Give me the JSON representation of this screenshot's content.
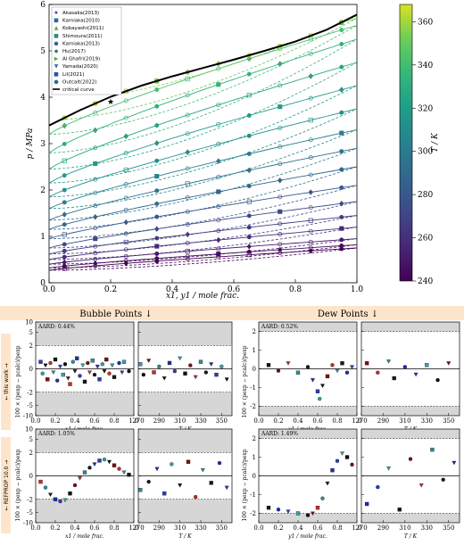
{
  "chart_data": [
    {
      "type": "scatter",
      "xlabel": "x1, y1 / mole frac.",
      "ylabel": "p / MPa",
      "xlim": [
        0.0,
        1.0
      ],
      "ylim": [
        0,
        6
      ],
      "xticks": [
        "0.0",
        "0.2",
        "0.4",
        "0.6",
        "0.8",
        "1.0"
      ],
      "yticks": [
        "0",
        "1",
        "2",
        "3",
        "4",
        "5",
        "6"
      ],
      "colorbar": {
        "label": "T / K",
        "min": 240,
        "max": 368,
        "ticks": [
          "240",
          "260",
          "280",
          "300",
          "320",
          "340",
          "360"
        ]
      },
      "legend": [
        "Akasaka(2013)",
        "Kamiaka(2010)",
        "Kobayashi(2011)",
        "Shimoura(2011)",
        "Kamiaka(2013)",
        "Hu(2017)",
        "Al Ghafri(2019)",
        "Yamada(2020)",
        "Lil(2021)",
        "Outcalt(2022)",
        "critical curve"
      ],
      "critical_curve": {
        "x": [
          0.0,
          0.1,
          0.2,
          0.3,
          0.4,
          0.5,
          0.6,
          0.7,
          0.8,
          0.9,
          1.0
        ],
        "y": [
          3.39,
          3.72,
          4.01,
          4.25,
          4.45,
          4.63,
          4.81,
          5.0,
          5.2,
          5.45,
          5.78
        ]
      },
      "isotherms": [
        {
          "T": 240,
          "p0": 0.27,
          "p1": 0.75
        },
        {
          "T": 245,
          "p0": 0.32,
          "p1": 0.82
        },
        {
          "T": 250,
          "p0": 0.4,
          "p1": 0.95
        },
        {
          "T": 258,
          "p0": 0.5,
          "p1": 1.2
        },
        {
          "T": 265,
          "p0": 0.62,
          "p1": 1.45
        },
        {
          "T": 272,
          "p0": 0.75,
          "p1": 1.75
        },
        {
          "T": 280,
          "p0": 0.95,
          "p1": 2.1
        },
        {
          "T": 288,
          "p0": 1.15,
          "p1": 2.5
        },
        {
          "T": 295,
          "p0": 1.35,
          "p1": 2.9
        },
        {
          "T": 303,
          "p0": 1.6,
          "p1": 3.3
        },
        {
          "T": 310,
          "p0": 1.85,
          "p1": 3.75
        },
        {
          "T": 318,
          "p0": 2.15,
          "p1": 4.25
        },
        {
          "T": 325,
          "p0": 2.45,
          "p1": 4.75
        },
        {
          "T": 333,
          "p0": 2.8,
          "p1": 5.25
        },
        {
          "T": 340,
          "p0": 3.2,
          "p1": 5.55
        },
        {
          "T": 348,
          "p0": 3.5,
          "p1": 5.7
        },
        {
          "T": 355,
          "p0": 3.9,
          "p1": 5.75
        },
        {
          "T": 362,
          "p0": 4.35,
          "p1": 5.78
        }
      ]
    },
    {
      "panel": "bubble-this-work-x",
      "type": "scatter",
      "xlabel": "x1 / mole frac.",
      "ylabel": "100 × (pexp − pcalc)/pexp",
      "xlim": [
        0.0,
        1.0
      ],
      "ylim": [
        -10,
        10
      ],
      "aard": "AARD: 0.44%",
      "points": [
        [
          0.05,
          0.6
        ],
        [
          0.07,
          -0.4
        ],
        [
          0.1,
          0.3
        ],
        [
          0.12,
          -0.9
        ],
        [
          0.15,
          0.5
        ],
        [
          0.18,
          -0.3
        ],
        [
          0.2,
          0.8
        ],
        [
          0.22,
          -1.0
        ],
        [
          0.25,
          0.2
        ],
        [
          0.28,
          -0.5
        ],
        [
          0.3,
          0.4
        ],
        [
          0.33,
          -0.8
        ],
        [
          0.35,
          -1.3
        ],
        [
          0.38,
          0.6
        ],
        [
          0.4,
          -0.2
        ],
        [
          0.42,
          0.9
        ],
        [
          0.45,
          -0.6
        ],
        [
          0.48,
          0.3
        ],
        [
          0.5,
          -1.1
        ],
        [
          0.53,
          0.5
        ],
        [
          0.55,
          -0.3
        ],
        [
          0.58,
          0.7
        ],
        [
          0.6,
          -0.5
        ],
        [
          0.63,
          0.2
        ],
        [
          0.65,
          -0.9
        ],
        [
          0.68,
          0.4
        ],
        [
          0.7,
          -0.2
        ],
        [
          0.72,
          0.8
        ],
        [
          0.75,
          -0.4
        ],
        [
          0.78,
          0.3
        ],
        [
          0.8,
          -0.7
        ],
        [
          0.85,
          0.5
        ],
        [
          0.88,
          -0.3
        ],
        [
          0.9,
          0.6
        ],
        [
          0.95,
          -0.2
        ]
      ]
    },
    {
      "panel": "bubble-this-work-T",
      "type": "scatter",
      "xlabel": "T / K",
      "xlim": [
        270,
        360
      ],
      "ylim": [
        -10,
        10
      ],
      "xticks": [
        "270",
        "290",
        "310",
        "330",
        "350"
      ],
      "points": [
        [
          272,
          0.4
        ],
        [
          275,
          -0.5
        ],
        [
          280,
          0.7
        ],
        [
          285,
          -0.3
        ],
        [
          290,
          0.2
        ],
        [
          295,
          -0.8
        ],
        [
          300,
          0.5
        ],
        [
          305,
          -0.2
        ],
        [
          310,
          0.9
        ],
        [
          315,
          -0.4
        ],
        [
          320,
          0.3
        ],
        [
          325,
          -0.7
        ],
        [
          330,
          0.6
        ],
        [
          335,
          -0.3
        ],
        [
          340,
          0.4
        ],
        [
          345,
          -0.5
        ],
        [
          350,
          0.2
        ],
        [
          355,
          -0.9
        ]
      ]
    },
    {
      "panel": "dew-this-work-y",
      "type": "scatter",
      "xlabel": "y1 / mole frac.",
      "xlim": [
        0.0,
        1.0
      ],
      "ylim": [
        -2.5,
        2.5
      ],
      "aard": "AARD: 0.52%",
      "points": [
        [
          0.1,
          0.2
        ],
        [
          0.2,
          -0.1
        ],
        [
          0.3,
          0.3
        ],
        [
          0.4,
          -0.2
        ],
        [
          0.5,
          0.1
        ],
        [
          0.55,
          -0.6
        ],
        [
          0.6,
          -1.2
        ],
        [
          0.62,
          -1.6
        ],
        [
          0.65,
          -0.9
        ],
        [
          0.7,
          -0.4
        ],
        [
          0.75,
          0.2
        ],
        [
          0.8,
          -0.1
        ],
        [
          0.85,
          0.3
        ],
        [
          0.9,
          -0.2
        ],
        [
          0.95,
          0.1
        ]
      ]
    },
    {
      "panel": "dew-this-work-T",
      "type": "scatter",
      "xlabel": "T / K",
      "xlim": [
        270,
        360
      ],
      "ylim": [
        -2.5,
        2.5
      ],
      "xticks": [
        "270",
        "290",
        "310",
        "330",
        "350"
      ],
      "points": [
        [
          275,
          0.3
        ],
        [
          285,
          -0.2
        ],
        [
          295,
          0.4
        ],
        [
          300,
          -0.5
        ],
        [
          310,
          0.1
        ],
        [
          320,
          -0.3
        ],
        [
          330,
          0.2
        ],
        [
          340,
          -0.6
        ],
        [
          350,
          0.3
        ]
      ]
    },
    {
      "panel": "bubble-refprop-x",
      "type": "scatter",
      "xlabel": "x1 / mole frac.",
      "xlim": [
        0.0,
        1.0
      ],
      "ylim": [
        -10,
        10
      ],
      "aard": "AARD: 1.05%",
      "points": [
        [
          0.05,
          -0.5
        ],
        [
          0.1,
          -1.0
        ],
        [
          0.15,
          -1.6
        ],
        [
          0.2,
          -2.0
        ],
        [
          0.25,
          -2.3
        ],
        [
          0.3,
          -2.1
        ],
        [
          0.35,
          -1.5
        ],
        [
          0.4,
          -0.8
        ],
        [
          0.45,
          -0.2
        ],
        [
          0.5,
          0.3
        ],
        [
          0.55,
          0.7
        ],
        [
          0.6,
          1.0
        ],
        [
          0.65,
          1.3
        ],
        [
          0.7,
          1.4
        ],
        [
          0.75,
          1.2
        ],
        [
          0.8,
          0.9
        ],
        [
          0.85,
          0.6
        ],
        [
          0.9,
          0.3
        ],
        [
          0.95,
          0.1
        ]
      ]
    },
    {
      "panel": "bubble-refprop-T",
      "type": "scatter",
      "xlabel": "T / K",
      "xlim": [
        270,
        360
      ],
      "ylim": [
        -10,
        10
      ],
      "xticks": [
        "270",
        "290",
        "310",
        "330",
        "350"
      ],
      "points": [
        [
          272,
          -1.2
        ],
        [
          280,
          -0.5
        ],
        [
          288,
          0.6
        ],
        [
          295,
          -1.5
        ],
        [
          302,
          1.0
        ],
        [
          310,
          -0.8
        ],
        [
          318,
          1.2
        ],
        [
          325,
          -1.8
        ],
        [
          332,
          0.5
        ],
        [
          340,
          -0.6
        ],
        [
          348,
          1.1
        ],
        [
          355,
          -1.0
        ]
      ]
    },
    {
      "panel": "dew-refprop-y",
      "type": "scatter",
      "xlabel": "y1 / mole frac.",
      "xlim": [
        0.0,
        1.0
      ],
      "ylim": [
        -2.5,
        2.5
      ],
      "aard": "AARD: 1.49%",
      "points": [
        [
          0.1,
          -1.7
        ],
        [
          0.2,
          -1.8
        ],
        [
          0.3,
          -1.9
        ],
        [
          0.4,
          -2.0
        ],
        [
          0.5,
          -2.1
        ],
        [
          0.55,
          -2.0
        ],
        [
          0.6,
          -1.7
        ],
        [
          0.65,
          -1.2
        ],
        [
          0.7,
          -0.4
        ],
        [
          0.75,
          0.3
        ],
        [
          0.8,
          0.8
        ],
        [
          0.85,
          1.2
        ],
        [
          0.9,
          1.0
        ],
        [
          0.95,
          0.6
        ]
      ]
    },
    {
      "panel": "dew-refprop-T",
      "type": "scatter",
      "xlabel": "T / K",
      "xlim": [
        270,
        360
      ],
      "ylim": [
        -2.5,
        2.5
      ],
      "xticks": [
        "270",
        "290",
        "310",
        "330",
        "350"
      ],
      "points": [
        [
          275,
          -1.5
        ],
        [
          285,
          -0.6
        ],
        [
          295,
          0.4
        ],
        [
          305,
          -1.8
        ],
        [
          315,
          0.9
        ],
        [
          325,
          -0.5
        ],
        [
          335,
          1.4
        ],
        [
          345,
          -0.2
        ],
        [
          355,
          0.7
        ]
      ]
    }
  ],
  "headers": {
    "bubble": "Bubble Points ↓",
    "dew": "Dew Points ↓"
  },
  "row_labels": {
    "top": "← this work →",
    "bottom": "← REFPROP 10.0 →"
  },
  "small_ylabel": "100 × (pexp − pcalc)/pexp",
  "colors": {
    "header_bg": "#fde5cc",
    "band": "#d6d6d6",
    "critical": "#000000"
  }
}
